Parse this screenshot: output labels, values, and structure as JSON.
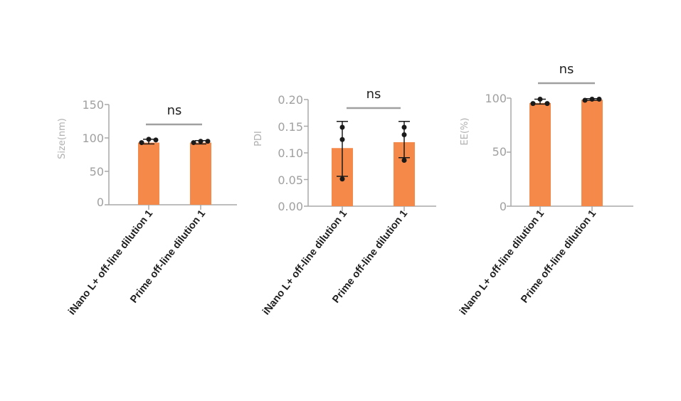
{
  "chart_data": [
    {
      "type": "bar",
      "ylabel": "Size(nm)",
      "ylim": [
        0,
        150
      ],
      "yticks": [
        "0",
        "50",
        "100",
        "150"
      ],
      "categories": [
        "iNano L+ off-line dilution 1",
        "Prime off-line dilution 1"
      ],
      "values": [
        93,
        93
      ],
      "error_low": [
        91,
        91
      ],
      "error_high": [
        98,
        96
      ],
      "points": [
        [
          93,
          98,
          97
        ],
        [
          93,
          95,
          95
        ]
      ],
      "significance": "ns",
      "bar_color": "#f5894a"
    },
    {
      "type": "bar",
      "ylabel": "PDI",
      "ylim": [
        0,
        0.2
      ],
      "yticks": [
        "0.00",
        "0.05",
        "0.10",
        "0.15",
        "0.20"
      ],
      "categories": [
        "iNano L+ off-line dilution 1",
        "Prime off-line dilution 1"
      ],
      "values": [
        0.109,
        0.12
      ],
      "error_low": [
        0.056,
        0.091
      ],
      "error_high": [
        0.159,
        0.159
      ],
      "points": [
        [
          0.051,
          0.125,
          0.148
        ],
        [
          0.086,
          0.134,
          0.148
        ]
      ],
      "significance": "ns",
      "bar_color": "#f5894a"
    },
    {
      "type": "bar",
      "ylabel": "EE(%)",
      "ylim": [
        0,
        100
      ],
      "yticks": [
        "0",
        "50",
        "100"
      ],
      "categories": [
        "iNano L+ off-line dilution 1",
        "Prime off-line dilution 1"
      ],
      "values": [
        95.5,
        98.5
      ],
      "error_low": [
        94.5,
        98
      ],
      "error_high": [
        99,
        99.5
      ],
      "points": [
        [
          95,
          99,
          95
        ],
        [
          98,
          99,
          99
        ]
      ],
      "significance": "ns",
      "bar_color": "#f5894a"
    }
  ],
  "colors": {
    "axis": "#a8a8a8",
    "bar": "#f5894a",
    "point": "#1a1a1a",
    "sig_line": "#a0a0a0"
  }
}
